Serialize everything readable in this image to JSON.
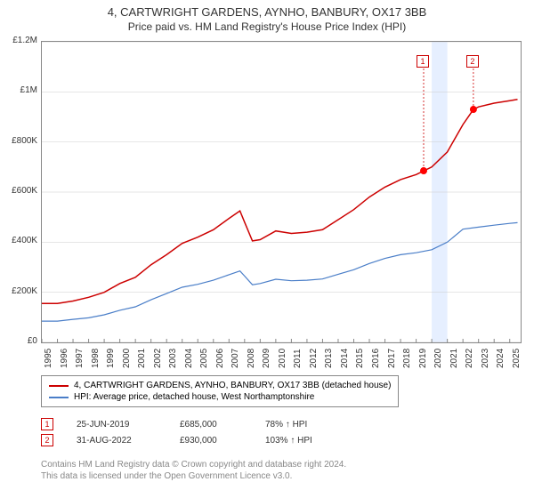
{
  "title1": "4, CARTWRIGHT GARDENS, AYNHO, BANBURY, OX17 3BB",
  "title2": "Price paid vs. HM Land Registry's House Price Index (HPI)",
  "chart": {
    "type": "line",
    "background_color": "#ffffff",
    "grid_color": "#cccccc",
    "axis_color": "#888888",
    "highlight_band": {
      "x_start": 2020.0,
      "x_end": 2021.0,
      "color": "#e6efff"
    },
    "y": {
      "min": 0,
      "max": 1200000,
      "ticks": [
        0,
        200000,
        400000,
        600000,
        800000,
        1000000,
        1200000
      ],
      "tick_labels": [
        "£0",
        "£200K",
        "£400K",
        "£600K",
        "£800K",
        "£1M",
        "£1.2M"
      ],
      "label_fontsize": 10
    },
    "x": {
      "min": 1995,
      "max": 2025.7,
      "ticks": [
        1995,
        1996,
        1997,
        1998,
        1999,
        2000,
        2001,
        2002,
        2003,
        2004,
        2005,
        2006,
        2007,
        2008,
        2009,
        2010,
        2011,
        2012,
        2013,
        2014,
        2015,
        2016,
        2017,
        2018,
        2019,
        2020,
        2021,
        2022,
        2023,
        2024,
        2025
      ],
      "tick_labels": [
        "1995",
        "1996",
        "1997",
        "1998",
        "1999",
        "2000",
        "2001",
        "2002",
        "2003",
        "2004",
        "2005",
        "2006",
        "2007",
        "2008",
        "2009",
        "2010",
        "2011",
        "2012",
        "2013",
        "2014",
        "2015",
        "2016",
        "2017",
        "2018",
        "2019",
        "2020",
        "2021",
        "2022",
        "2023",
        "2024",
        "2025"
      ],
      "label_fontsize": 10
    },
    "series": [
      {
        "name": "property",
        "label": "4, CARTWRIGHT GARDENS, AYNHO, BANBURY, OX17 3BB (detached house)",
        "color": "#cc0000",
        "line_width": 1.5,
        "data": [
          [
            1995,
            155000
          ],
          [
            1996,
            155000
          ],
          [
            1997,
            165000
          ],
          [
            1998,
            180000
          ],
          [
            1999,
            200000
          ],
          [
            2000,
            235000
          ],
          [
            2001,
            260000
          ],
          [
            2002,
            310000
          ],
          [
            2003,
            350000
          ],
          [
            2004,
            395000
          ],
          [
            2005,
            420000
          ],
          [
            2006,
            450000
          ],
          [
            2007,
            495000
          ],
          [
            2007.7,
            525000
          ],
          [
            2008,
            480000
          ],
          [
            2008.5,
            405000
          ],
          [
            2009,
            410000
          ],
          [
            2010,
            445000
          ],
          [
            2011,
            435000
          ],
          [
            2012,
            440000
          ],
          [
            2013,
            450000
          ],
          [
            2014,
            490000
          ],
          [
            2015,
            530000
          ],
          [
            2016,
            580000
          ],
          [
            2017,
            620000
          ],
          [
            2018,
            650000
          ],
          [
            2019,
            670000
          ],
          [
            2019.5,
            685000
          ],
          [
            2020,
            700000
          ],
          [
            2021,
            760000
          ],
          [
            2022,
            870000
          ],
          [
            2022.67,
            930000
          ],
          [
            2023,
            940000
          ],
          [
            2024,
            955000
          ],
          [
            2025,
            965000
          ],
          [
            2025.5,
            970000
          ]
        ]
      },
      {
        "name": "hpi",
        "label": "HPI: Average price, detached house, West Northamptonshire",
        "color": "#4a7ec8",
        "line_width": 1.2,
        "data": [
          [
            1995,
            85000
          ],
          [
            1996,
            85000
          ],
          [
            1997,
            92000
          ],
          [
            1998,
            98000
          ],
          [
            1999,
            110000
          ],
          [
            2000,
            128000
          ],
          [
            2001,
            142000
          ],
          [
            2002,
            170000
          ],
          [
            2003,
            195000
          ],
          [
            2004,
            220000
          ],
          [
            2005,
            232000
          ],
          [
            2006,
            248000
          ],
          [
            2007,
            270000
          ],
          [
            2007.7,
            285000
          ],
          [
            2008,
            265000
          ],
          [
            2008.5,
            230000
          ],
          [
            2009,
            235000
          ],
          [
            2010,
            252000
          ],
          [
            2011,
            246000
          ],
          [
            2012,
            248000
          ],
          [
            2013,
            253000
          ],
          [
            2014,
            272000
          ],
          [
            2015,
            290000
          ],
          [
            2016,
            315000
          ],
          [
            2017,
            335000
          ],
          [
            2018,
            350000
          ],
          [
            2019,
            358000
          ],
          [
            2020,
            370000
          ],
          [
            2021,
            400000
          ],
          [
            2022,
            452000
          ],
          [
            2023,
            460000
          ],
          [
            2024,
            468000
          ],
          [
            2025,
            475000
          ],
          [
            2025.5,
            478000
          ]
        ]
      }
    ],
    "sale_markers": [
      {
        "num": "1",
        "x": 2019.48,
        "y": 685000,
        "color": "#cc0000",
        "dot_color": "#ff0000"
      },
      {
        "num": "2",
        "x": 2022.67,
        "y": 930000,
        "color": "#cc0000",
        "dot_color": "#ff0000"
      }
    ]
  },
  "legend": {
    "items": [
      {
        "color": "#cc0000",
        "label": "4, CARTWRIGHT GARDENS, AYNHO, BANBURY, OX17 3BB (detached house)"
      },
      {
        "color": "#4a7ec8",
        "label": "HPI: Average price, detached house, West Northamptonshire"
      }
    ]
  },
  "sales": [
    {
      "num": "1",
      "color": "#cc0000",
      "date": "25-JUN-2019",
      "price": "£685,000",
      "pct_hpi": "78% ↑ HPI"
    },
    {
      "num": "2",
      "color": "#cc0000",
      "date": "31-AUG-2022",
      "price": "£930,000",
      "pct_hpi": "103% ↑ HPI"
    }
  ],
  "footer1": "Contains HM Land Registry data © Crown copyright and database right 2024.",
  "footer2": "This data is licensed under the Open Government Licence v3.0."
}
